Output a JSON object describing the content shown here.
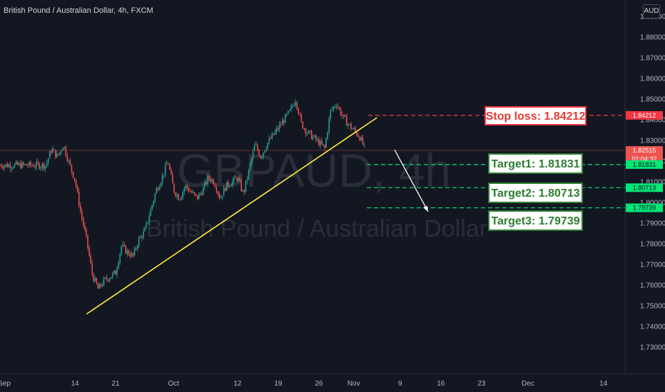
{
  "header": {
    "title": "British Pound / Australian Dollar, 4h, FXCM",
    "currency_button": "AUD"
  },
  "watermark": {
    "symbol": "GBPAUD, 4h",
    "name": "British Pound / Australian Dollar"
  },
  "chart_data": {
    "type": "line",
    "symbol": "GBPAUD",
    "interval": "4h",
    "source": "FXCM",
    "y_axis_ticks": [
      "1.89000",
      "1.88000",
      "1.87000",
      "1.86000",
      "1.85000",
      "1.84000",
      "1.83000",
      "1.82000",
      "1.81000",
      "1.80000",
      "1.79000",
      "1.78000",
      "1.77000",
      "1.76000",
      "1.75000",
      "1.74000",
      "1.73000"
    ],
    "x_axis_labels": [
      "Sep",
      "14",
      "21",
      "Oct",
      "12",
      "19",
      "26",
      "Nov",
      "9",
      "16",
      "23",
      "Dec",
      "14"
    ],
    "ylim": [
      1.728,
      1.893
    ],
    "series": [
      {
        "x": [
          "Sep 9",
          "Sep 10",
          "Sep 11",
          "Sep 12",
          "Sep 13",
          "Sep 14",
          "Sep 15",
          "Sep 16",
          "Sep 17",
          "Sep 18",
          "Sep 19",
          "Sep 21",
          "Sep 22",
          "Sep 23",
          "Sep 24",
          "Sep 25",
          "Sep 26",
          "Sep 28",
          "Sep 29",
          "Sep 30",
          "Oct 1",
          "Oct 2",
          "Oct 3",
          "Oct 5",
          "Oct 6",
          "Oct 7",
          "Oct 8",
          "Oct 9",
          "Oct 10",
          "Oct 12",
          "Oct 13",
          "Oct 14",
          "Oct 15",
          "Oct 16",
          "Oct 17",
          "Oct 19",
          "Oct 20",
          "Oct 21",
          "Oct 22",
          "Oct 23",
          "Oct 24",
          "Oct 26",
          "Oct 27",
          "Oct 28",
          "Oct 29",
          "Oct 30",
          "Oct 31",
          "Nov 2",
          "Nov 3"
        ],
        "values": [
          1.818,
          1.826,
          1.822,
          1.828,
          1.819,
          1.811,
          1.795,
          1.782,
          1.765,
          1.758,
          1.762,
          1.766,
          1.779,
          1.776,
          1.774,
          1.782,
          1.786,
          1.806,
          1.812,
          1.82,
          1.806,
          1.802,
          1.808,
          1.802,
          1.806,
          1.812,
          1.81,
          1.802,
          1.808,
          1.812,
          1.804,
          1.816,
          1.828,
          1.822,
          1.828,
          1.836,
          1.84,
          1.844,
          1.85,
          1.838,
          1.834,
          1.829,
          1.826,
          1.844,
          1.848,
          1.842,
          1.838,
          1.832,
          1.8252
        ]
      }
    ],
    "trendline": {
      "from": {
        "x": "Sep 16",
        "y": 1.746
      },
      "to": {
        "x": "Nov 5",
        "y": 1.841
      }
    },
    "annotations": {
      "last_price": "1.82515",
      "countdown": "01:04:32",
      "stop_loss": {
        "label": "Stop loss: 1.84212",
        "tag": "1.84212",
        "value": 1.84212,
        "color": "#f23645"
      },
      "targets": [
        {
          "label": "Target1: 1.81831",
          "tag": "1.81831",
          "value": 1.81831
        },
        {
          "label": "Target2: 1.80713",
          "tag": "1.80713",
          "value": 1.80713
        },
        {
          "label": "Target3: 1.79739",
          "tag": "1.79739",
          "value": 1.79739
        }
      ]
    },
    "grid": false,
    "colors": {
      "background": "#131722",
      "up": "#26a69a",
      "down": "#ef5350",
      "trendline": "#ffeb3b",
      "target": "#00e676",
      "stop": "#f23645"
    }
  }
}
